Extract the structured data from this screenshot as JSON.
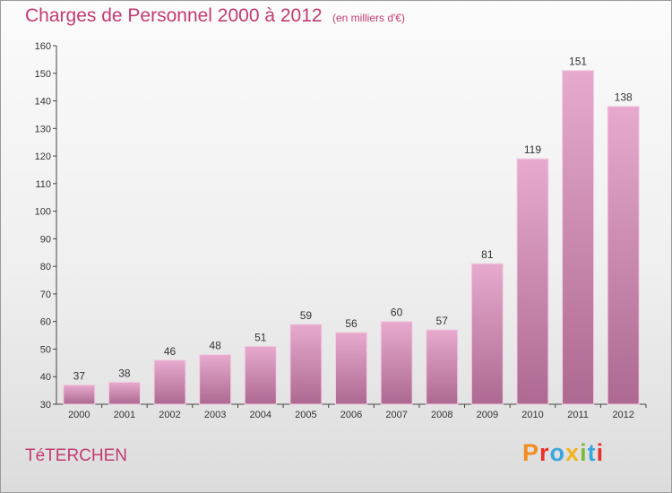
{
  "header": {
    "title": "Charges de Personnel 2000 à 2012",
    "subtitle": "(en milliers d'€)"
  },
  "footer": {
    "commune": "TéTERCHEN",
    "logo_text": "Proxiti"
  },
  "colors": {
    "accent": "#c23b73",
    "bar_top": "#e7aace",
    "bar_bottom": "#ad6991",
    "logo_letters": [
      "#f28c1e",
      "#e8312b",
      "#3aa6dd",
      "#f0b41e",
      "#7bbb3a",
      "#3aa6dd",
      "#e8312b"
    ]
  },
  "chart_data": {
    "type": "bar",
    "categories": [
      "2000",
      "2001",
      "2002",
      "2003",
      "2004",
      "2005",
      "2006",
      "2007",
      "2008",
      "2009",
      "2010",
      "2011",
      "2012"
    ],
    "values": [
      37,
      38,
      46,
      48,
      51,
      59,
      56,
      60,
      57,
      81,
      119,
      151,
      138
    ],
    "title": "Charges de Personnel 2000 à 2012",
    "xlabel": "",
    "ylabel": "",
    "ylim": [
      30,
      160
    ],
    "yticks": [
      30,
      40,
      50,
      60,
      70,
      80,
      90,
      100,
      110,
      120,
      130,
      140,
      150,
      160
    ],
    "grid": false,
    "data_labels": true
  }
}
